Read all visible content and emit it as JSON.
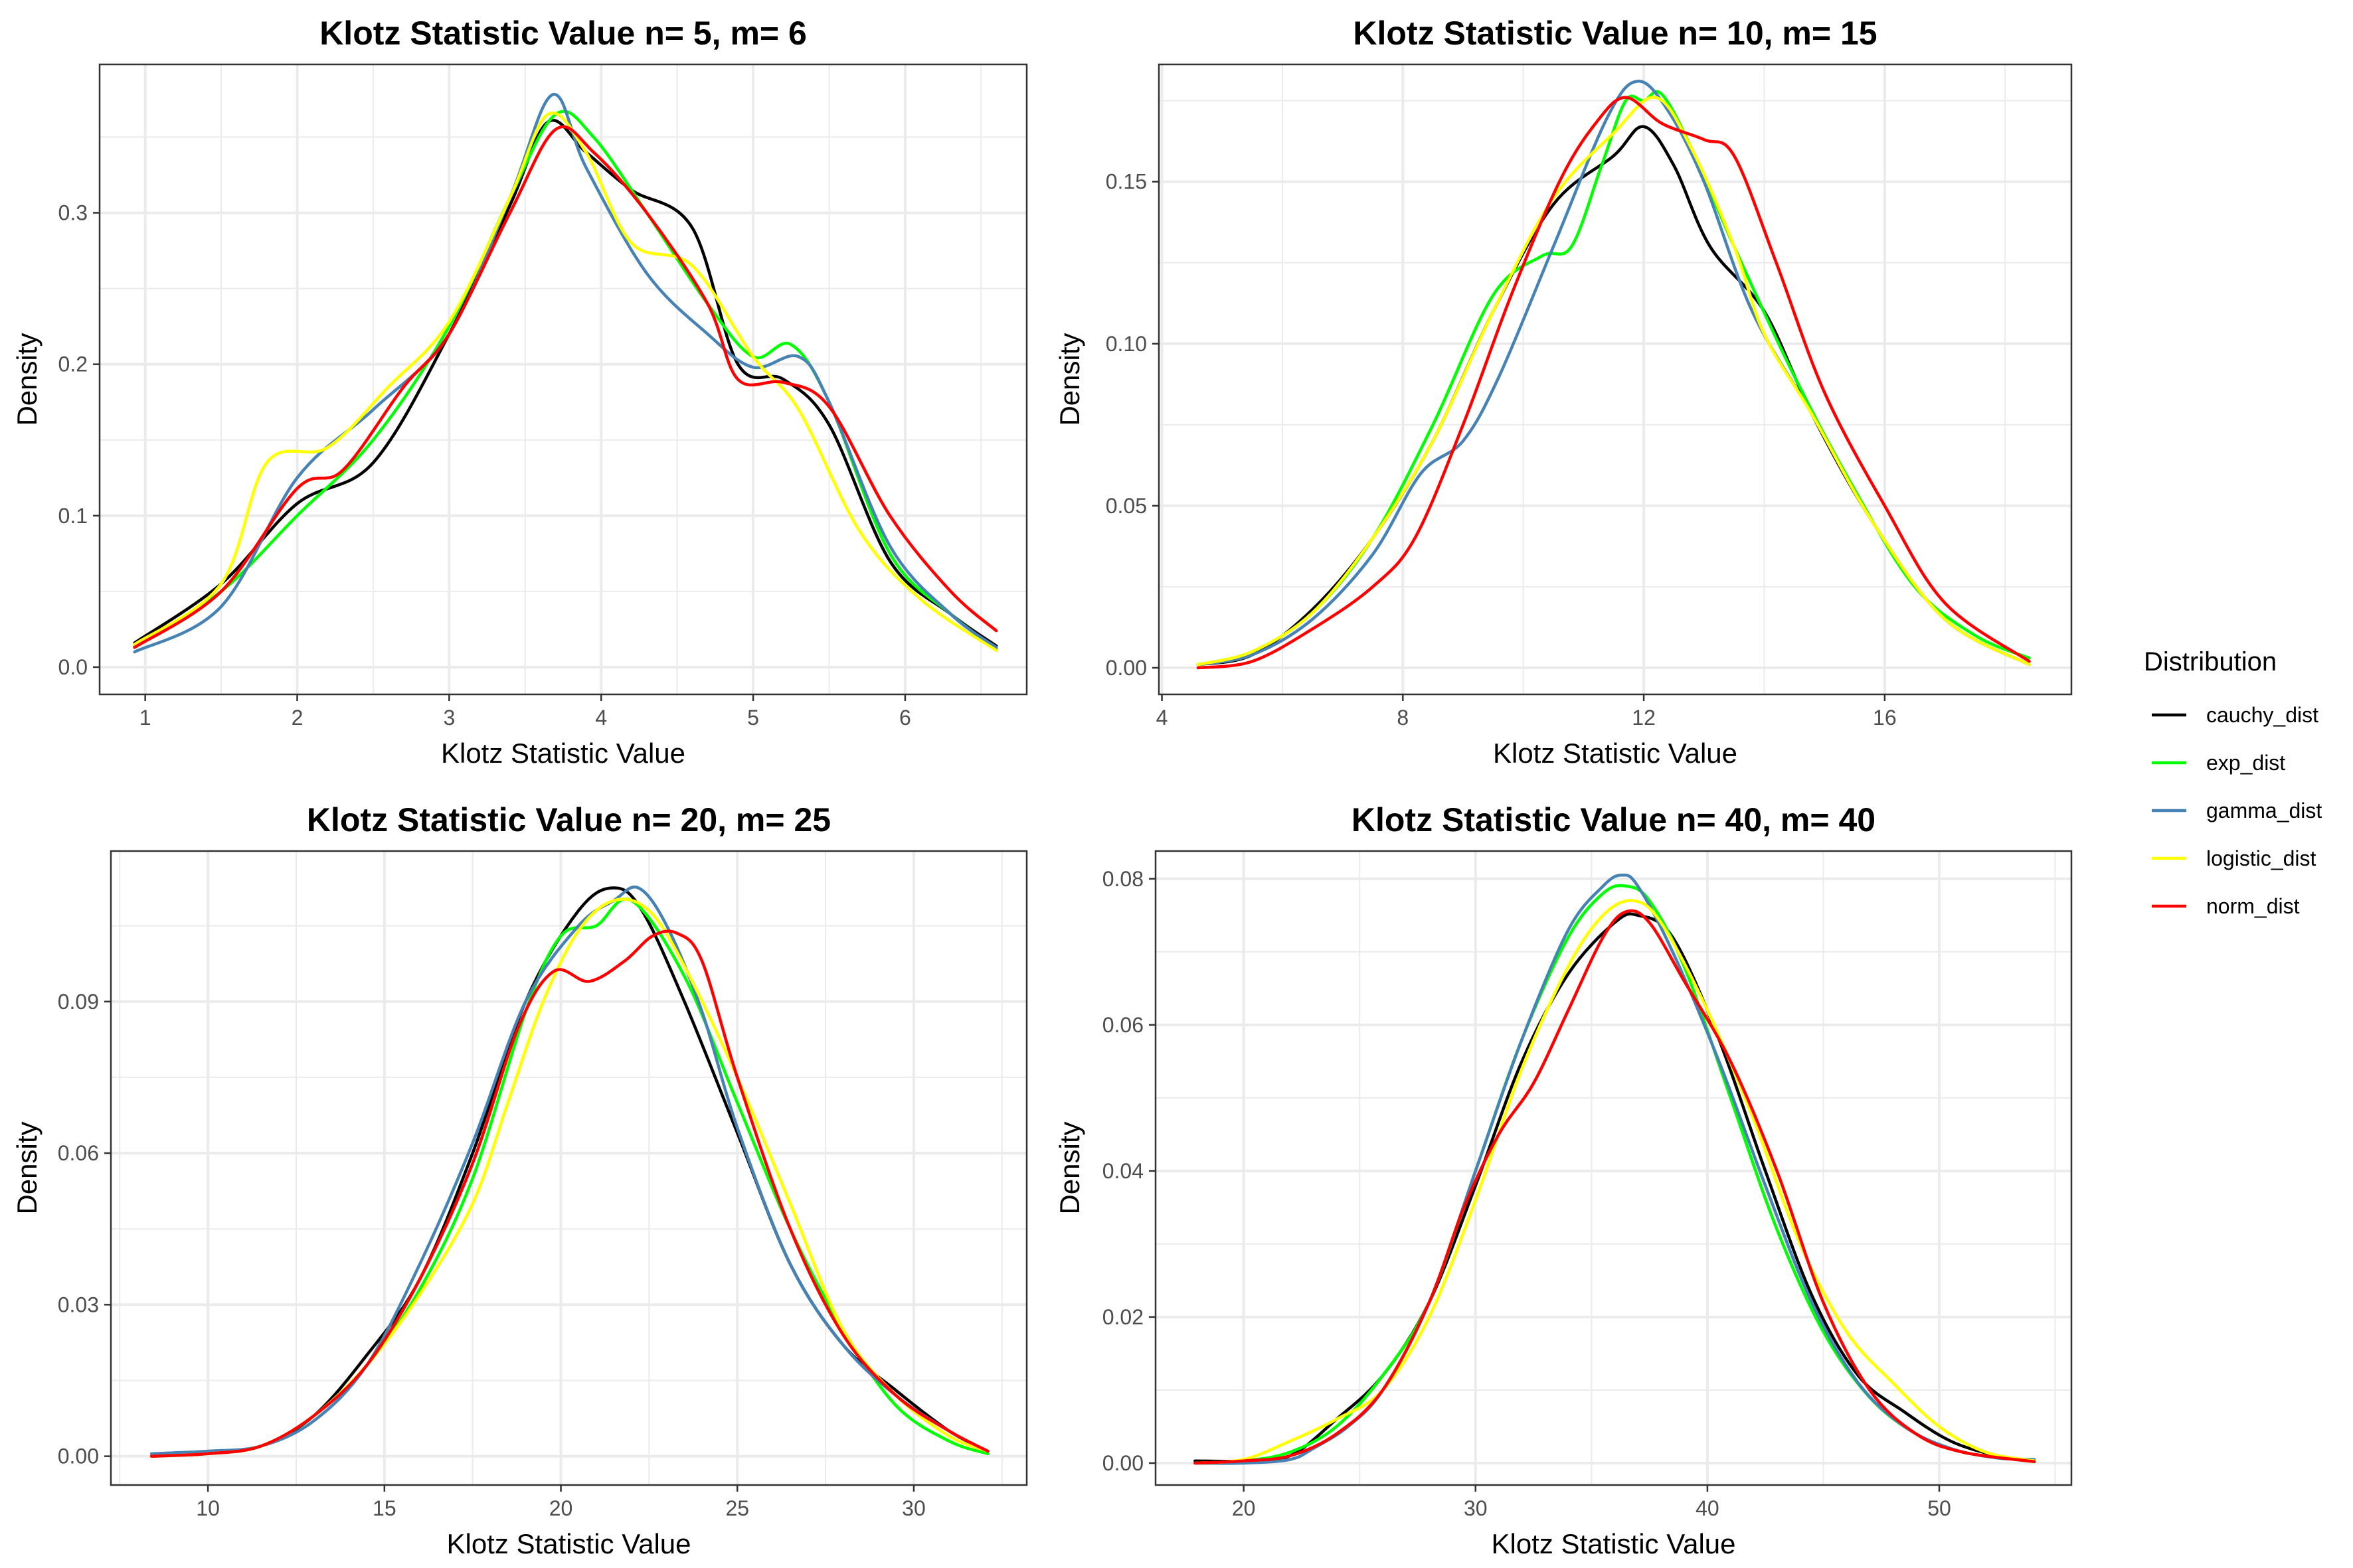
{
  "legend": {
    "title": "Distribution",
    "entries": [
      {
        "name": "cauchy_dist",
        "color": "#000000"
      },
      {
        "name": "exp_dist",
        "color": "#00ff00"
      },
      {
        "name": "gamma_dist",
        "color": "#4682b4"
      },
      {
        "name": "logistic_dist",
        "color": "#ffff00"
      },
      {
        "name": "norm_dist",
        "color": "#ff0000"
      }
    ]
  },
  "chart_data": [
    {
      "type": "line",
      "title": "Klotz Statistic Value n= 5, m= 6",
      "xlabel": "Klotz Statistic Value",
      "ylabel": "Density",
      "xlim": [
        0.7,
        6.8
      ],
      "ylim": [
        -0.018,
        0.398
      ],
      "xticks": [
        1,
        2,
        3,
        4,
        5,
        6
      ],
      "xtick_labels": [
        "1",
        "2",
        "3",
        "4",
        "5",
        "6"
      ],
      "yticks": [
        0.0,
        0.1,
        0.2,
        0.3
      ],
      "ytick_labels": [
        "0.0",
        "0.1",
        "0.2",
        "0.3"
      ],
      "grid": true,
      "series": [
        {
          "name": "cauchy_dist",
          "color": "#000000",
          "x": [
            0.93,
            1.5,
            2.0,
            2.5,
            3.0,
            3.4,
            3.65,
            3.9,
            4.2,
            4.6,
            4.9,
            5.2,
            5.5,
            5.9,
            6.3,
            6.6
          ],
          "y": [
            0.016,
            0.055,
            0.108,
            0.135,
            0.22,
            0.305,
            0.36,
            0.34,
            0.315,
            0.29,
            0.2,
            0.19,
            0.16,
            0.07,
            0.035,
            0.014
          ]
        },
        {
          "name": "exp_dist",
          "color": "#00ff00",
          "x": [
            0.93,
            1.5,
            2.0,
            2.5,
            3.0,
            3.4,
            3.7,
            3.95,
            4.3,
            4.7,
            5.0,
            5.25,
            5.5,
            5.9,
            6.3,
            6.6
          ],
          "y": [
            0.014,
            0.05,
            0.1,
            0.15,
            0.225,
            0.31,
            0.365,
            0.35,
            0.3,
            0.24,
            0.205,
            0.213,
            0.175,
            0.075,
            0.035,
            0.012
          ]
        },
        {
          "name": "gamma_dist",
          "color": "#4682b4",
          "x": [
            0.93,
            1.5,
            2.0,
            2.5,
            3.0,
            3.4,
            3.68,
            3.9,
            4.3,
            4.7,
            5.0,
            5.3,
            5.5,
            5.9,
            6.3,
            6.6
          ],
          "y": [
            0.01,
            0.04,
            0.125,
            0.17,
            0.22,
            0.31,
            0.378,
            0.33,
            0.26,
            0.22,
            0.198,
            0.205,
            0.175,
            0.08,
            0.035,
            0.013
          ]
        },
        {
          "name": "logistic_dist",
          "color": "#ffff00",
          "x": [
            0.93,
            1.5,
            1.8,
            2.2,
            2.6,
            3.0,
            3.4,
            3.65,
            3.9,
            4.2,
            4.6,
            5.0,
            5.3,
            5.7,
            6.1,
            6.6
          ],
          "y": [
            0.015,
            0.055,
            0.135,
            0.145,
            0.185,
            0.228,
            0.31,
            0.365,
            0.34,
            0.28,
            0.265,
            0.205,
            0.17,
            0.09,
            0.045,
            0.011
          ]
        },
        {
          "name": "norm_dist",
          "color": "#ff0000",
          "x": [
            0.93,
            1.5,
            2.0,
            2.3,
            2.7,
            3.0,
            3.4,
            3.7,
            3.95,
            4.3,
            4.7,
            4.9,
            5.2,
            5.5,
            5.9,
            6.3,
            6.6
          ],
          "y": [
            0.013,
            0.05,
            0.118,
            0.13,
            0.185,
            0.22,
            0.3,
            0.355,
            0.34,
            0.3,
            0.24,
            0.19,
            0.188,
            0.172,
            0.1,
            0.05,
            0.024
          ]
        }
      ]
    },
    {
      "type": "line",
      "title": "Klotz Statistic Value n= 10, m= 15",
      "xlabel": "Klotz Statistic Value",
      "ylabel": "Density",
      "xlim": [
        3.95,
        19.1
      ],
      "ylim": [
        -0.0082,
        0.1862
      ],
      "xticks": [
        4,
        8,
        12,
        16
      ],
      "xtick_labels": [
        "4",
        "8",
        "12",
        "16"
      ],
      "yticks": [
        0.0,
        0.05,
        0.1,
        0.15
      ],
      "ytick_labels": [
        "0.00",
        "0.05",
        "0.10",
        "0.15"
      ],
      "grid": true,
      "series": [
        {
          "name": "cauchy_dist",
          "color": "#000000",
          "x": [
            4.6,
            5.5,
            6.5,
            7.5,
            8.5,
            9.5,
            10.5,
            11.5,
            12.0,
            12.5,
            13.1,
            14.0,
            14.8,
            15.8,
            17.0,
            18.4
          ],
          "y": [
            0.001,
            0.004,
            0.018,
            0.04,
            0.07,
            0.11,
            0.143,
            0.158,
            0.167,
            0.155,
            0.13,
            0.11,
            0.078,
            0.045,
            0.015,
            0.001
          ]
        },
        {
          "name": "exp_dist",
          "color": "#00ff00",
          "x": [
            4.6,
            5.5,
            6.5,
            7.5,
            8.5,
            9.5,
            10.3,
            10.8,
            11.3,
            11.7,
            12.0,
            12.3,
            12.8,
            13.5,
            14.5,
            15.5,
            16.5,
            17.5,
            18.4
          ],
          "y": [
            0.001,
            0.005,
            0.017,
            0.04,
            0.075,
            0.115,
            0.127,
            0.13,
            0.155,
            0.175,
            0.175,
            0.177,
            0.16,
            0.13,
            0.09,
            0.055,
            0.025,
            0.01,
            0.003
          ]
        },
        {
          "name": "gamma_dist",
          "color": "#4682b4",
          "x": [
            4.6,
            5.5,
            6.5,
            7.5,
            8.3,
            9.0,
            9.6,
            10.5,
            11.4,
            11.9,
            12.4,
            13.0,
            13.8,
            14.8,
            15.8,
            17.0,
            18.4
          ],
          "y": [
            0.001,
            0.004,
            0.015,
            0.035,
            0.06,
            0.07,
            0.09,
            0.13,
            0.17,
            0.181,
            0.172,
            0.15,
            0.11,
            0.078,
            0.045,
            0.015,
            0.001
          ]
        },
        {
          "name": "logistic_dist",
          "color": "#ffff00",
          "x": [
            4.6,
            5.5,
            6.5,
            7.5,
            8.5,
            9.5,
            10.5,
            11.5,
            12.2,
            12.8,
            13.5,
            14.0,
            14.8,
            15.8,
            17.0,
            18.4
          ],
          "y": [
            0.001,
            0.005,
            0.017,
            0.04,
            0.07,
            0.11,
            0.145,
            0.165,
            0.176,
            0.16,
            0.13,
            0.103,
            0.078,
            0.045,
            0.015,
            0.001
          ]
        },
        {
          "name": "norm_dist",
          "color": "#ff0000",
          "x": [
            4.6,
            5.5,
            6.5,
            7.5,
            8.2,
            9.0,
            9.8,
            10.6,
            11.2,
            11.7,
            12.3,
            13.0,
            13.5,
            14.2,
            15.0,
            16.0,
            17.0,
            18.4
          ],
          "y": [
            0.0,
            0.002,
            0.012,
            0.025,
            0.04,
            0.075,
            0.115,
            0.15,
            0.168,
            0.176,
            0.168,
            0.163,
            0.158,
            0.125,
            0.085,
            0.05,
            0.02,
            0.002
          ]
        }
      ]
    },
    {
      "type": "line",
      "title": "Klotz Statistic Value n= 20, m= 25",
      "xlabel": "Klotz Statistic Value",
      "ylabel": "Density",
      "xlim": [
        7.25,
        33.2
      ],
      "ylim": [
        -0.0057,
        0.1198
      ],
      "xticks": [
        10,
        15,
        20,
        25,
        30
      ],
      "xtick_labels": [
        "10",
        "15",
        "20",
        "25",
        "30"
      ],
      "yticks": [
        0.0,
        0.03,
        0.06,
        0.09
      ],
      "ytick_labels": [
        "0.00",
        "0.03",
        "0.06",
        "0.09"
      ],
      "grid": true,
      "series": [
        {
          "name": "cauchy_dist",
          "color": "#000000",
          "x": [
            8.4,
            10.0,
            11.5,
            13.0,
            14.5,
            16.0,
            17.5,
            19.0,
            20.5,
            21.5,
            22.3,
            23.5,
            25.0,
            26.5,
            28.0,
            29.5,
            31.0,
            32.1
          ],
          "y": [
            0.0,
            0.0005,
            0.002,
            0.008,
            0.02,
            0.035,
            0.06,
            0.09,
            0.108,
            0.1125,
            0.108,
            0.09,
            0.064,
            0.038,
            0.022,
            0.013,
            0.005,
            0.001
          ]
        },
        {
          "name": "exp_dist",
          "color": "#00ff00",
          "x": [
            8.4,
            10.0,
            11.5,
            13.0,
            14.5,
            16.0,
            17.5,
            19.0,
            20.0,
            21.0,
            22.0,
            23.5,
            25.0,
            26.5,
            28.0,
            29.5,
            31.0,
            32.1
          ],
          "y": [
            0.0,
            0.0005,
            0.002,
            0.008,
            0.018,
            0.033,
            0.055,
            0.088,
            0.103,
            0.105,
            0.11,
            0.095,
            0.07,
            0.045,
            0.025,
            0.01,
            0.003,
            0.0005
          ]
        },
        {
          "name": "gamma_dist",
          "color": "#4682b4",
          "x": [
            8.4,
            10.0,
            11.5,
            13.0,
            14.5,
            16.0,
            17.5,
            19.0,
            20.5,
            21.5,
            22.2,
            23.0,
            24.0,
            25.0,
            26.5,
            28.0,
            29.5,
            31.0,
            32.1
          ],
          "y": [
            0.0005,
            0.001,
            0.002,
            0.007,
            0.018,
            0.038,
            0.062,
            0.09,
            0.105,
            0.11,
            0.1125,
            0.105,
            0.088,
            0.065,
            0.038,
            0.022,
            0.012,
            0.005,
            0.001
          ]
        },
        {
          "name": "logistic_dist",
          "color": "#ffff00",
          "x": [
            8.4,
            10.0,
            11.5,
            13.0,
            14.5,
            16.0,
            17.5,
            18.5,
            19.5,
            20.5,
            21.5,
            22.5,
            23.5,
            25.0,
            26.5,
            28.0,
            29.5,
            31.0,
            32.1
          ],
          "y": [
            0.0,
            0.0005,
            0.002,
            0.008,
            0.018,
            0.032,
            0.05,
            0.07,
            0.09,
            0.104,
            0.11,
            0.108,
            0.097,
            0.075,
            0.05,
            0.025,
            0.012,
            0.004,
            0.001
          ]
        },
        {
          "name": "norm_dist",
          "color": "#ff0000",
          "x": [
            8.4,
            10.0,
            11.5,
            13.0,
            14.5,
            16.0,
            17.5,
            18.8,
            19.8,
            20.8,
            21.8,
            22.6,
            23.3,
            24.0,
            25.0,
            26.5,
            28.0,
            29.5,
            31.0,
            32.1
          ],
          "y": [
            0.0,
            0.0005,
            0.002,
            0.008,
            0.018,
            0.035,
            0.058,
            0.085,
            0.096,
            0.094,
            0.098,
            0.103,
            0.1035,
            0.098,
            0.075,
            0.045,
            0.024,
            0.012,
            0.005,
            0.001
          ]
        }
      ]
    },
    {
      "type": "line",
      "title": "Klotz Statistic Value n= 40, m= 40",
      "xlabel": "Klotz Statistic Value",
      "ylabel": "Density",
      "xlim": [
        16.2,
        55.7
      ],
      "ylim": [
        -0.003,
        0.0838
      ],
      "xticks": [
        20,
        30,
        40,
        50
      ],
      "xtick_labels": [
        "20",
        "30",
        "40",
        "50"
      ],
      "yticks": [
        0.0,
        0.02,
        0.04,
        0.06,
        0.08
      ],
      "ytick_labels": [
        "0.00",
        "0.02",
        "0.04",
        "0.06",
        "0.08"
      ],
      "grid": true,
      "series": [
        {
          "name": "cauchy_dist",
          "color": "#000000",
          "x": [
            17.9,
            20.0,
            22.0,
            24.0,
            26.0,
            28.0,
            30.0,
            32.0,
            34.0,
            36.0,
            37.0,
            38.5,
            40.5,
            42.5,
            44.5,
            46.5,
            48.5,
            50.5,
            52.5,
            54.1
          ],
          "y": [
            0.0003,
            0.0003,
            0.001,
            0.006,
            0.012,
            0.022,
            0.038,
            0.055,
            0.067,
            0.074,
            0.075,
            0.072,
            0.058,
            0.04,
            0.023,
            0.012,
            0.007,
            0.003,
            0.001,
            0.0002
          ]
        },
        {
          "name": "exp_dist",
          "color": "#00ff00",
          "x": [
            17.9,
            20.0,
            22.0,
            24.0,
            26.0,
            28.0,
            30.0,
            32.0,
            34.0,
            35.5,
            36.5,
            37.5,
            39.0,
            41.0,
            43.0,
            45.0,
            47.0,
            49.0,
            51.0,
            54.1
          ],
          "y": [
            0.0,
            0.0003,
            0.0015,
            0.005,
            0.012,
            0.022,
            0.04,
            0.058,
            0.072,
            0.078,
            0.079,
            0.077,
            0.068,
            0.05,
            0.032,
            0.018,
            0.009,
            0.004,
            0.0015,
            0.0002
          ]
        },
        {
          "name": "gamma_dist",
          "color": "#4682b4",
          "x": [
            17.9,
            20.0,
            22.0,
            23.0,
            24.5,
            26.0,
            28.0,
            30.0,
            32.0,
            34.0,
            35.5,
            36.3,
            37.0,
            38.5,
            40.5,
            42.5,
            44.5,
            46.5,
            48.5,
            50.5,
            52.5,
            54.1
          ],
          "y": [
            0.0,
            0.0,
            0.0005,
            0.002,
            0.005,
            0.01,
            0.022,
            0.04,
            0.058,
            0.073,
            0.079,
            0.0805,
            0.079,
            0.07,
            0.055,
            0.038,
            0.022,
            0.011,
            0.005,
            0.002,
            0.0007,
            0.0005
          ]
        },
        {
          "name": "logistic_dist",
          "color": "#ffff00",
          "x": [
            17.9,
            20.0,
            22.0,
            24.0,
            26.0,
            28.0,
            30.0,
            32.0,
            34.0,
            35.5,
            36.8,
            38.0,
            40.0,
            42.0,
            44.0,
            46.0,
            48.0,
            50.0,
            52.0,
            54.1
          ],
          "y": [
            0.0,
            0.0005,
            0.003,
            0.006,
            0.01,
            0.02,
            0.036,
            0.054,
            0.068,
            0.075,
            0.077,
            0.074,
            0.062,
            0.047,
            0.03,
            0.018,
            0.011,
            0.005,
            0.0015,
            0.0003
          ]
        },
        {
          "name": "norm_dist",
          "color": "#ff0000",
          "x": [
            17.9,
            20.0,
            22.0,
            24.0,
            26.0,
            28.0,
            29.5,
            31.0,
            32.5,
            34.0,
            35.5,
            36.5,
            37.5,
            39.0,
            41.0,
            43.0,
            45.0,
            47.0,
            49.0,
            51.0,
            54.1
          ],
          "y": [
            0.0,
            0.0003,
            0.001,
            0.004,
            0.01,
            0.022,
            0.035,
            0.045,
            0.052,
            0.062,
            0.072,
            0.0755,
            0.074,
            0.066,
            0.055,
            0.04,
            0.022,
            0.01,
            0.004,
            0.0015,
            0.0002
          ]
        }
      ]
    }
  ]
}
